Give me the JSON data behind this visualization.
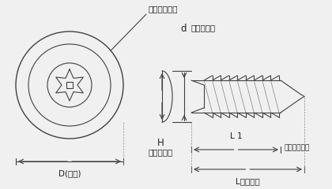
{
  "bg_color": "#f0f0f0",
  "line_color": "#404040",
  "label_color": "#202020",
  "font_size_label": 7.5,
  "font_size_small": 6.5,
  "labels": {
    "lockstar": "ロックスター",
    "d_label": "d",
    "neji": "（ねじ径）",
    "H_label": "H",
    "atama_taka": "（頭高さ）",
    "D_label": "D(頭径)",
    "L1_label": "L 1",
    "hataraki": "（働き長さ）",
    "L_label": "L（全長）"
  }
}
